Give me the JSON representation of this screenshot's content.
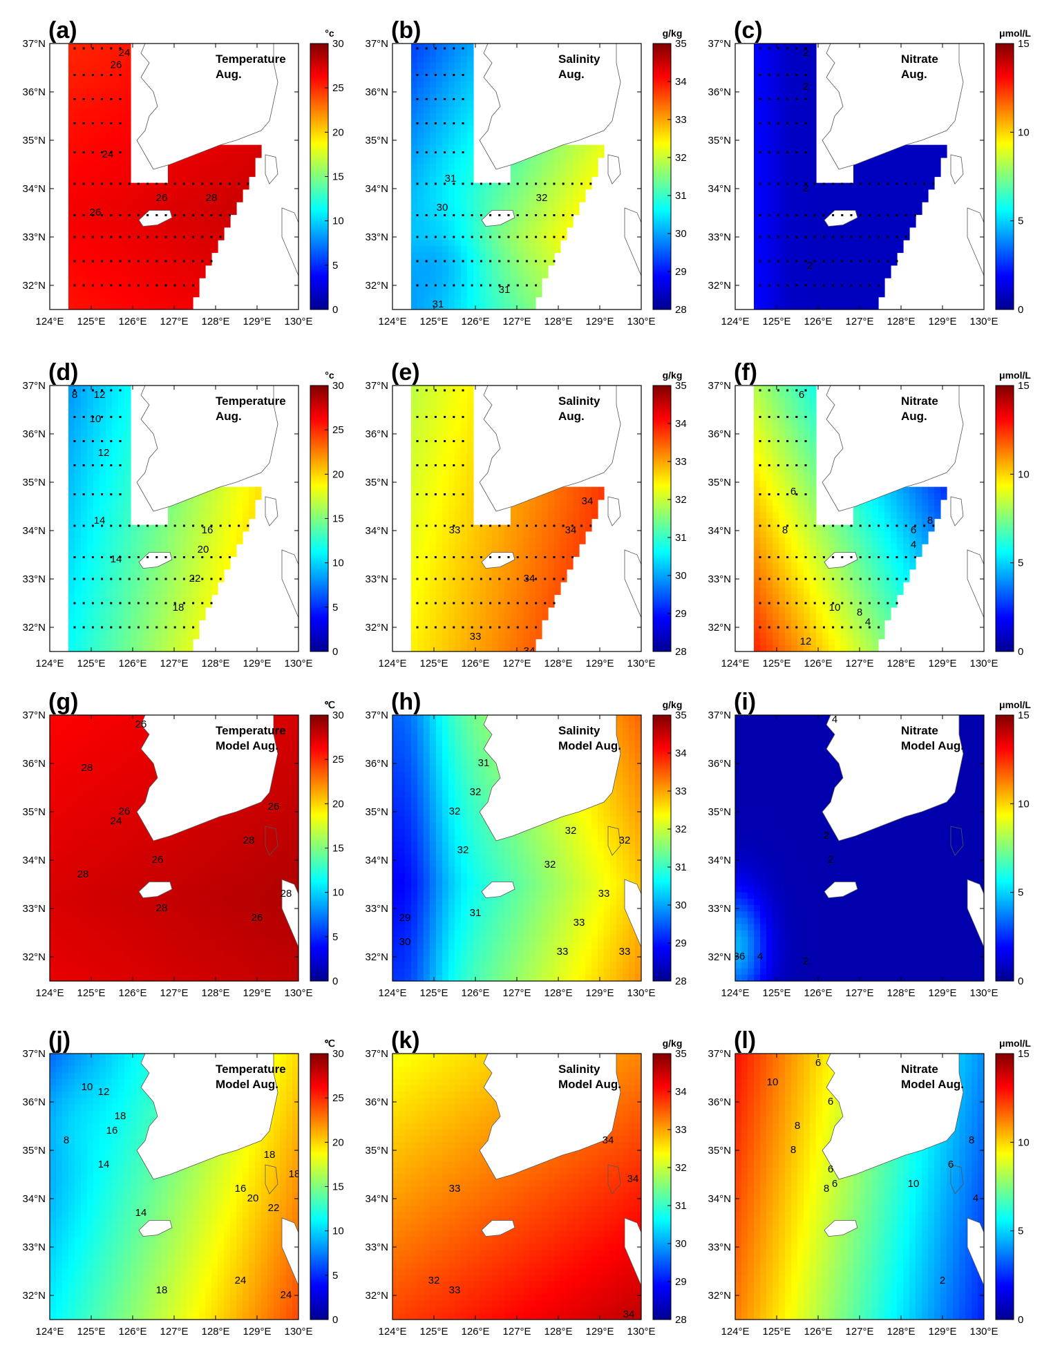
{
  "figure": {
    "longitude_ticks": [
      "124°E",
      "125°E",
      "126°E",
      "127°E",
      "128°E",
      "129°E",
      "130°E"
    ],
    "latitude_ticks": [
      "37°N",
      "36°N",
      "35°N",
      "34°N",
      "33°N",
      "32°N"
    ],
    "map_extent": {
      "lon": [
        124,
        130
      ],
      "lat": [
        31.5,
        37
      ]
    }
  },
  "colorbars": {
    "temperature": {
      "ticks": [
        "30",
        "25",
        "20",
        "15",
        "10",
        "5",
        "0"
      ],
      "range": [
        0,
        30
      ]
    },
    "salinity": {
      "ticks": [
        "35",
        "34",
        "33",
        "32",
        "31",
        "30",
        "29",
        "28"
      ],
      "range": [
        28,
        35
      ]
    },
    "nitrate": {
      "ticks": [
        "15",
        "10",
        "5",
        "0"
      ],
      "range": [
        0,
        15
      ]
    }
  },
  "colors": {
    "ramp": [
      "#00008f",
      "#0000ff",
      "#0080ff",
      "#00ffff",
      "#80ff80",
      "#ffff00",
      "#ff8000",
      "#ff0000",
      "#800000"
    ],
    "ocean_white": "#ffffff",
    "land_outline": "#555555"
  },
  "panels": [
    {
      "letter": "(a)",
      "unit": "°c",
      "title": [
        "Temperature",
        "Aug."
      ],
      "var": "temperature",
      "source": "observed",
      "depth": "surface",
      "field": "temp_surf",
      "labels": [
        {
          "text": "24",
          "lon": 125.8,
          "lat": 36.8
        },
        {
          "text": "26",
          "lon": 125.6,
          "lat": 36.55
        },
        {
          "text": "24",
          "lon": 125.4,
          "lat": 34.7
        },
        {
          "text": "26",
          "lon": 126.7,
          "lat": 33.8
        },
        {
          "text": "28",
          "lon": 127.9,
          "lat": 33.8
        },
        {
          "text": "26",
          "lon": 125.1,
          "lat": 33.5
        }
      ]
    },
    {
      "letter": "(b)",
      "unit": "g/kg",
      "title": [
        "Salinity",
        "Aug."
      ],
      "var": "salinity",
      "source": "observed",
      "depth": "surface",
      "field": "sal_surf",
      "labels": [
        {
          "text": "31",
          "lon": 125.4,
          "lat": 34.2
        },
        {
          "text": "30",
          "lon": 125.2,
          "lat": 33.6
        },
        {
          "text": "32",
          "lon": 127.6,
          "lat": 33.8
        },
        {
          "text": "31",
          "lon": 126.7,
          "lat": 31.9
        },
        {
          "text": "31",
          "lon": 125.1,
          "lat": 31.6
        }
      ]
    },
    {
      "letter": "(c)",
      "unit": "μmol/L",
      "title": [
        "Nitrate",
        "Aug."
      ],
      "var": "nitrate",
      "source": "observed",
      "depth": "surface",
      "field": "nit_surf",
      "labels": [
        {
          "text": "2",
          "lon": 125.7,
          "lat": 36.8
        },
        {
          "text": "2",
          "lon": 125.7,
          "lat": 36.1
        },
        {
          "text": "2",
          "lon": 125.7,
          "lat": 34.0
        },
        {
          "text": "2",
          "lon": 125.8,
          "lat": 32.4
        }
      ]
    },
    {
      "letter": "(d)",
      "unit": "°c",
      "title": [
        "Temperature",
        "Aug."
      ],
      "var": "temperature",
      "source": "observed",
      "depth": "bottom",
      "field": "temp_bot",
      "labels": [
        {
          "text": "8",
          "lon": 124.6,
          "lat": 36.8
        },
        {
          "text": "12",
          "lon": 125.2,
          "lat": 36.8
        },
        {
          "text": "10",
          "lon": 125.1,
          "lat": 36.3
        },
        {
          "text": "12",
          "lon": 125.3,
          "lat": 35.6
        },
        {
          "text": "14",
          "lon": 125.2,
          "lat": 34.2
        },
        {
          "text": "14",
          "lon": 125.6,
          "lat": 33.4
        },
        {
          "text": "16",
          "lon": 127.8,
          "lat": 34.0
        },
        {
          "text": "20",
          "lon": 127.7,
          "lat": 33.6
        },
        {
          "text": "22",
          "lon": 127.5,
          "lat": 33.0
        },
        {
          "text": "18",
          "lon": 127.1,
          "lat": 32.4
        }
      ]
    },
    {
      "letter": "(e)",
      "unit": "g/kg",
      "title": [
        "Salinity",
        "Aug."
      ],
      "var": "salinity",
      "source": "observed",
      "depth": "bottom",
      "field": "sal_bot",
      "labels": [
        {
          "text": "34",
          "lon": 128.7,
          "lat": 34.6
        },
        {
          "text": "33",
          "lon": 125.5,
          "lat": 34.0
        },
        {
          "text": "34",
          "lon": 128.3,
          "lat": 34.0
        },
        {
          "text": "34",
          "lon": 127.3,
          "lat": 33.0
        },
        {
          "text": "33",
          "lon": 126.0,
          "lat": 31.8
        },
        {
          "text": "34",
          "lon": 127.3,
          "lat": 31.5
        }
      ]
    },
    {
      "letter": "(f)",
      "unit": "μmol/L",
      "title": [
        "Nitrate",
        "Aug."
      ],
      "var": "nitrate",
      "source": "observed",
      "depth": "bottom",
      "field": "nit_bot",
      "labels": [
        {
          "text": "6",
          "lon": 125.6,
          "lat": 36.8
        },
        {
          "text": "6",
          "lon": 125.4,
          "lat": 34.8
        },
        {
          "text": "8",
          "lon": 125.2,
          "lat": 34.0
        },
        {
          "text": "8",
          "lon": 128.7,
          "lat": 34.2
        },
        {
          "text": "6",
          "lon": 128.3,
          "lat": 34.0
        },
        {
          "text": "4",
          "lon": 128.3,
          "lat": 33.7
        },
        {
          "text": "10",
          "lon": 126.4,
          "lat": 32.4
        },
        {
          "text": "8",
          "lon": 127.0,
          "lat": 32.3
        },
        {
          "text": "4",
          "lon": 127.2,
          "lat": 32.1
        },
        {
          "text": "12",
          "lon": 125.7,
          "lat": 31.7
        }
      ]
    },
    {
      "letter": "(g)",
      "unit": "℃",
      "title": [
        "Temperature",
        "Model Aug."
      ],
      "var": "temperature",
      "source": "model",
      "depth": "surface",
      "field": "temp_surf_model",
      "labels": [
        {
          "text": "26",
          "lon": 126.2,
          "lat": 36.8
        },
        {
          "text": "28",
          "lon": 124.9,
          "lat": 35.9
        },
        {
          "text": "26",
          "lon": 125.8,
          "lat": 35.0
        },
        {
          "text": "24",
          "lon": 125.6,
          "lat": 34.8
        },
        {
          "text": "26",
          "lon": 126.6,
          "lat": 34.0
        },
        {
          "text": "28",
          "lon": 124.8,
          "lat": 33.7
        },
        {
          "text": "28",
          "lon": 126.7,
          "lat": 33.0
        },
        {
          "text": "26",
          "lon": 129.4,
          "lat": 35.1
        },
        {
          "text": "28",
          "lon": 128.8,
          "lat": 34.4
        },
        {
          "text": "28",
          "lon": 129.7,
          "lat": 33.3
        },
        {
          "text": "26",
          "lon": 129.0,
          "lat": 32.8
        }
      ]
    },
    {
      "letter": "(h)",
      "unit": "g/kg",
      "title": [
        "Salinity",
        "Model Aug."
      ],
      "var": "salinity",
      "source": "model",
      "depth": "surface",
      "field": "sal_surf_model",
      "labels": [
        {
          "text": "31",
          "lon": 126.2,
          "lat": 36.0
        },
        {
          "text": "32",
          "lon": 126.0,
          "lat": 35.4
        },
        {
          "text": "32",
          "lon": 125.5,
          "lat": 35.0
        },
        {
          "text": "32",
          "lon": 125.7,
          "lat": 34.2
        },
        {
          "text": "32",
          "lon": 128.3,
          "lat": 34.6
        },
        {
          "text": "32",
          "lon": 127.8,
          "lat": 33.9
        },
        {
          "text": "32",
          "lon": 129.6,
          "lat": 34.4
        },
        {
          "text": "33",
          "lon": 129.1,
          "lat": 33.3
        },
        {
          "text": "33",
          "lon": 128.5,
          "lat": 32.7
        },
        {
          "text": "33",
          "lon": 129.6,
          "lat": 32.1
        },
        {
          "text": "33",
          "lon": 128.1,
          "lat": 32.1
        },
        {
          "text": "31",
          "lon": 126.0,
          "lat": 32.9
        },
        {
          "text": "29",
          "lon": 124.3,
          "lat": 32.8
        },
        {
          "text": "30",
          "lon": 124.3,
          "lat": 32.3
        }
      ]
    },
    {
      "letter": "(i)",
      "unit": "μmol/L",
      "title": [
        "Nitrate",
        "Model Aug."
      ],
      "var": "nitrate",
      "source": "model",
      "depth": "surface",
      "field": "nit_surf_model",
      "labels": [
        {
          "text": "4",
          "lon": 126.4,
          "lat": 36.9
        },
        {
          "text": "2",
          "lon": 126.2,
          "lat": 34.5
        },
        {
          "text": "2",
          "lon": 126.3,
          "lat": 34.0
        },
        {
          "text": "2",
          "lon": 125.7,
          "lat": 31.9
        },
        {
          "text": "36",
          "lon": 124.1,
          "lat": 32.0
        },
        {
          "text": "4",
          "lon": 124.6,
          "lat": 32.0
        }
      ]
    },
    {
      "letter": "(j)",
      "unit": "℃",
      "title": [
        "Temperature",
        "Model Aug."
      ],
      "var": "temperature",
      "source": "model",
      "depth": "bottom",
      "field": "temp_bot_model",
      "labels": [
        {
          "text": "10",
          "lon": 124.9,
          "lat": 36.3
        },
        {
          "text": "12",
          "lon": 125.3,
          "lat": 36.2
        },
        {
          "text": "18",
          "lon": 125.7,
          "lat": 35.7
        },
        {
          "text": "16",
          "lon": 125.5,
          "lat": 35.4
        },
        {
          "text": "8",
          "lon": 124.4,
          "lat": 35.2
        },
        {
          "text": "14",
          "lon": 125.3,
          "lat": 34.7
        },
        {
          "text": "14",
          "lon": 126.2,
          "lat": 33.7
        },
        {
          "text": "16",
          "lon": 128.6,
          "lat": 34.2
        },
        {
          "text": "20",
          "lon": 128.9,
          "lat": 34.0
        },
        {
          "text": "22",
          "lon": 129.4,
          "lat": 33.8
        },
        {
          "text": "18",
          "lon": 129.3,
          "lat": 34.9
        },
        {
          "text": "18",
          "lon": 129.9,
          "lat": 34.5
        },
        {
          "text": "18",
          "lon": 126.7,
          "lat": 32.1
        },
        {
          "text": "24",
          "lon": 128.6,
          "lat": 32.3
        },
        {
          "text": "24",
          "lon": 129.7,
          "lat": 32.0
        }
      ]
    },
    {
      "letter": "(k)",
      "unit": "g/kg",
      "title": [
        "Salinity",
        "Model Aug."
      ],
      "var": "salinity",
      "source": "model",
      "depth": "bottom",
      "field": "sal_bot_model",
      "labels": [
        {
          "text": "34",
          "lon": 129.2,
          "lat": 35.2
        },
        {
          "text": "34",
          "lon": 129.8,
          "lat": 34.4
        },
        {
          "text": "33",
          "lon": 125.5,
          "lat": 34.2
        },
        {
          "text": "32",
          "lon": 125.0,
          "lat": 32.3
        },
        {
          "text": "33",
          "lon": 125.5,
          "lat": 32.1
        },
        {
          "text": "34",
          "lon": 129.7,
          "lat": 31.6
        }
      ]
    },
    {
      "letter": "(l)",
      "unit": "μmol/L",
      "title": [
        "Nitrate",
        "Model Aug."
      ],
      "var": "nitrate",
      "source": "model",
      "depth": "bottom",
      "field": "nit_bot_model",
      "labels": [
        {
          "text": "6",
          "lon": 126.0,
          "lat": 36.8
        },
        {
          "text": "10",
          "lon": 124.9,
          "lat": 36.4
        },
        {
          "text": "6",
          "lon": 126.3,
          "lat": 36.0
        },
        {
          "text": "8",
          "lon": 125.5,
          "lat": 35.5
        },
        {
          "text": "8",
          "lon": 125.4,
          "lat": 35.0
        },
        {
          "text": "6",
          "lon": 126.3,
          "lat": 34.6
        },
        {
          "text": "6",
          "lon": 126.4,
          "lat": 34.3
        },
        {
          "text": "8",
          "lon": 126.2,
          "lat": 34.2
        },
        {
          "text": "8",
          "lon": 129.7,
          "lat": 35.2
        },
        {
          "text": "6",
          "lon": 129.2,
          "lat": 34.7
        },
        {
          "text": "10",
          "lon": 128.3,
          "lat": 34.3
        },
        {
          "text": "4",
          "lon": 129.8,
          "lat": 34.0
        },
        {
          "text": "2",
          "lon": 129.0,
          "lat": 32.3
        }
      ]
    }
  ]
}
